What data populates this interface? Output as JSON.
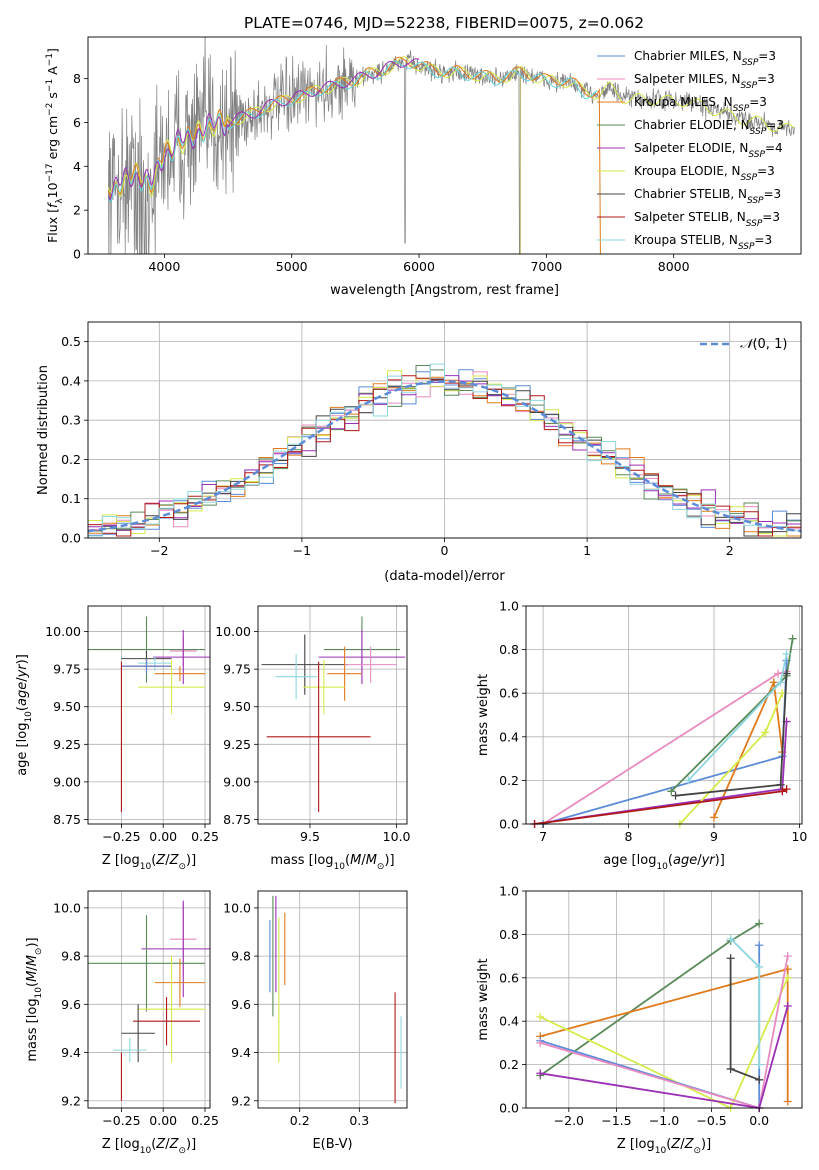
{
  "figure": {
    "title": "PLATE=0746, MJD=52238, FIBERID=0075, z=0.062"
  },
  "colors": {
    "Chabrier MILES": "#5b8bd9",
    "Salpeter MILES": "#e98ac0",
    "Kroupa MILES": "#e07b1c",
    "Chabrier ELODIE": "#5a8a5a",
    "Salpeter ELODIE": "#9b2fb5",
    "Kroupa ELODIE": "#d6ea4a",
    "Chabrier STELIB": "#444444",
    "Salpeter STELIB": "#b01818",
    "Kroupa STELIB": "#8fd6de",
    "data": "#808080",
    "normal_curve": "#5b8bd9",
    "cyan_model": "#63d8dc"
  },
  "chart_data": [
    {
      "id": "spectrum",
      "type": "line",
      "xlabel": "wavelength [Angstrom, rest frame]",
      "ylabel": "Flux [f_λ10^-17 erg cm^-2 s^-1 A^-1]",
      "xlim": [
        3400,
        9000
      ],
      "ylim": [
        0,
        9.9
      ],
      "xticks": [
        4000,
        5000,
        6000,
        7000,
        8000
      ],
      "yticks": [
        0,
        2,
        4,
        6,
        8
      ],
      "grid": false,
      "legend_position": "right",
      "legend": [
        "Chabrier MILES, N_SSP=3",
        "Salpeter MILES, N_SSP=3",
        "Kroupa MILES, N_SSP=3",
        "Chabrier ELODIE, N_SSP=3",
        "Salpeter ELODIE, N_SSP=4",
        "Kroupa ELODIE, N_SSP=3",
        "Chabrier STELIB, N_SSP=3",
        "Salpeter STELIB, N_SSP=3",
        "Kroupa STELIB, N_SSP=3"
      ],
      "continuum": {
        "x": [
          3600,
          3700,
          3800,
          3900,
          4000,
          4100,
          4200,
          4300,
          4400,
          4500,
          4600,
          4700,
          4800,
          4900,
          5000,
          5100,
          5200,
          5300,
          5400,
          5500,
          5600,
          5700,
          5800,
          5900,
          6000,
          6100,
          6200,
          6300,
          6400,
          6500,
          6600,
          6700,
          6800,
          6900,
          7000,
          7100,
          7200,
          7300,
          7400,
          7500,
          7600,
          7700,
          7800,
          7900,
          8000,
          8100,
          8200,
          8300,
          8400,
          8500,
          8600,
          8700,
          8800,
          8900
        ],
        "y": [
          3.0,
          3.4,
          3.6,
          3.2,
          4.5,
          5.1,
          5.2,
          5.7,
          5.9,
          6.0,
          6.2,
          6.4,
          6.7,
          6.9,
          7.1,
          7.2,
          7.5,
          7.6,
          7.8,
          7.9,
          8.2,
          8.3,
          8.6,
          8.8,
          8.6,
          8.4,
          8.3,
          8.3,
          8.2,
          8.1,
          8.0,
          8.1,
          8.3,
          8.1,
          7.9,
          7.9,
          7.8,
          7.4,
          7.3,
          7.6,
          7.1,
          7.1,
          7.0,
          7.1,
          6.9,
          7.0,
          6.8,
          6.6,
          6.4,
          6.2,
          6.1,
          6.0,
          5.8,
          5.7
        ]
      }
    },
    {
      "id": "residuals",
      "type": "line",
      "xlabel": "(data-model)/error",
      "ylabel": "Normed distribution",
      "xlim": [
        -2.5,
        2.5
      ],
      "ylim": [
        0,
        0.55
      ],
      "xticks": [
        -2,
        -1,
        0,
        1,
        2
      ],
      "yticks": [
        0.0,
        0.1,
        0.2,
        0.3,
        0.4,
        0.5
      ],
      "grid": true,
      "legend_position": "top-right",
      "legend": [
        "N(0,1)"
      ],
      "bins": {
        "start": -2.5,
        "width": 0.1,
        "count": 50
      }
    },
    {
      "id": "age_vs_Z",
      "type": "scatter",
      "xlabel": "Z [log10(Z/Z⊙)]",
      "ylabel": "age [log10(age/yr)]",
      "xlim": [
        -0.45,
        0.28
      ],
      "ylim": [
        8.72,
        10.17
      ],
      "xticks": [
        -0.25,
        0.0,
        0.25
      ],
      "yticks": [
        8.75,
        9.0,
        9.25,
        9.5,
        9.75,
        10.0
      ],
      "grid": true,
      "points": [
        {
          "series": "Chabrier ELODIE",
          "x": -0.1,
          "y": 9.88,
          "xerr": 0.35,
          "yerr": 0.22
        },
        {
          "series": "Salpeter MILES",
          "x": 0.12,
          "y": 9.87,
          "xerr": 0.08,
          "yerr": 0.1
        },
        {
          "series": "Salpeter ELODIE",
          "x": 0.12,
          "y": 9.83,
          "xerr": 0.18,
          "yerr": 0.18
        },
        {
          "series": "Chabrier STELIB",
          "x": -0.1,
          "y": 9.82,
          "xerr": 0.15,
          "yerr": 0.05
        },
        {
          "series": "Kroupa STELIB",
          "x": -0.05,
          "y": 9.79,
          "xerr": 0.1,
          "yerr": 0.05
        },
        {
          "series": "Salpeter STELIB",
          "x": -0.1,
          "y": 9.77,
          "xerr": 0.15,
          "yerr": 0.05
        },
        {
          "series": "Chabrier MILES",
          "x": -0.1,
          "y": 9.77,
          "xerr": 0.15,
          "yerr": 0.05
        },
        {
          "series": "Kroupa MILES",
          "x": 0.1,
          "y": 9.72,
          "xerr": 0.15,
          "yerr": 0.05
        },
        {
          "series": "Kroupa ELODIE",
          "x": 0.05,
          "y": 9.63,
          "xerr": 0.2,
          "yerr": 0.18
        },
        {
          "series": "Salpeter STELIB",
          "x": -0.25,
          "y": 9.3,
          "xerr": 0.0,
          "yerr": 0.5
        }
      ]
    },
    {
      "id": "age_vs_mass",
      "type": "scatter",
      "xlabel": "mass [log10(M/M⊙)]",
      "ylabel": "",
      "xlim": [
        9.2,
        10.06
      ],
      "ylim": [
        8.72,
        10.17
      ],
      "xticks": [
        9.5,
        10.0
      ],
      "yticks": [
        8.75,
        9.0,
        9.25,
        9.5,
        9.75,
        10.0
      ],
      "grid": true,
      "points": [
        {
          "series": "Chabrier ELODIE",
          "x": 9.8,
          "y": 9.88,
          "xerr": 0.22,
          "yerr": 0.22
        },
        {
          "series": "Salpeter ELODIE",
          "x": 9.8,
          "y": 9.83,
          "xerr": 0.25,
          "yerr": 0.18
        },
        {
          "series": "Chabrier STELIB",
          "x": 9.47,
          "y": 9.78,
          "xerr": 0.25,
          "yerr": 0.2
        },
        {
          "series": "Salpeter MILES",
          "x": 9.85,
          "y": 9.78,
          "xerr": 0.15,
          "yerr": 0.12
        },
        {
          "series": "Kroupa MILES",
          "x": 9.7,
          "y": 9.72,
          "xerr": 0.1,
          "yerr": 0.18
        },
        {
          "series": "Kroupa STELIB",
          "x": 9.42,
          "y": 9.7,
          "xerr": 0.12,
          "yerr": 0.15
        },
        {
          "series": "Kroupa ELODIE",
          "x": 9.58,
          "y": 9.63,
          "xerr": 0.12,
          "yerr": 0.18
        },
        {
          "series": "Salpeter STELIB",
          "x": 9.55,
          "y": 9.3,
          "xerr": 0.3,
          "yerr": 0.5
        }
      ]
    },
    {
      "id": "mass_weight_vs_age",
      "type": "line",
      "xlabel": "age [log10(age/yr)]",
      "ylabel": "mass weight",
      "xlim": [
        6.8,
        10.03
      ],
      "ylim": [
        0,
        1.0
      ],
      "xticks": [
        7,
        8,
        9,
        10
      ],
      "yticks": [
        0.0,
        0.2,
        0.4,
        0.6,
        0.8,
        1.0
      ],
      "grid": true,
      "series": [
        {
          "series": "Salpeter MILES",
          "x": [
            7.0,
            9.75,
            9.85
          ],
          "y": [
            0.0,
            0.69,
            0.7
          ]
        },
        {
          "series": "Chabrier MILES",
          "x": [
            7.0,
            9.8,
            9.85
          ],
          "y": [
            0.0,
            0.31,
            0.75
          ]
        },
        {
          "series": "Kroupa MILES",
          "x": [
            9.0,
            9.7,
            9.8
          ],
          "y": [
            0.03,
            0.65,
            0.33
          ]
        },
        {
          "series": "Chabrier ELODIE",
          "x": [
            8.5,
            9.85,
            9.92
          ],
          "y": [
            0.15,
            0.68,
            0.85
          ]
        },
        {
          "series": "Salpeter ELODIE",
          "x": [
            6.9,
            9.8,
            9.85
          ],
          "y": [
            0.0,
            0.16,
            0.47
          ]
        },
        {
          "series": "Kroupa ELODIE",
          "x": [
            8.6,
            9.6,
            9.8
          ],
          "y": [
            0.0,
            0.42,
            0.6
          ]
        },
        {
          "series": "Chabrier STELIB",
          "x": [
            8.55,
            9.78,
            9.85
          ],
          "y": [
            0.13,
            0.18,
            0.69
          ]
        },
        {
          "series": "Salpeter STELIB",
          "x": [
            6.9,
            9.8,
            9.85
          ],
          "y": [
            0.0,
            0.15,
            0.16
          ]
        },
        {
          "series": "Kroupa STELIB",
          "x": [
            8.7,
            9.78,
            9.85
          ],
          "y": [
            0.2,
            0.65,
            0.78
          ]
        }
      ]
    },
    {
      "id": "mass_vs_Z",
      "type": "scatter",
      "xlabel": "Z [log10(Z/Z⊙)]",
      "ylabel": "mass [log10(M/M⊙)]",
      "xlim": [
        -0.45,
        0.28
      ],
      "ylim": [
        9.17,
        10.07
      ],
      "xticks": [
        -0.25,
        0.0,
        0.25
      ],
      "yticks": [
        9.2,
        9.4,
        9.6,
        9.8,
        10.0
      ],
      "grid": true,
      "points": [
        {
          "series": "Salpeter MILES",
          "x": 0.12,
          "y": 9.87,
          "xerr": 0.08,
          "yerr": 0.15
        },
        {
          "series": "Salpeter ELODIE",
          "x": 0.12,
          "y": 9.83,
          "xerr": 0.25,
          "yerr": 0.2
        },
        {
          "series": "Chabrier ELODIE",
          "x": -0.1,
          "y": 9.77,
          "xerr": 0.35,
          "yerr": 0.2
        },
        {
          "series": "Kroupa MILES",
          "x": 0.1,
          "y": 9.69,
          "xerr": 0.15,
          "yerr": 0.1
        },
        {
          "series": "Kroupa ELODIE",
          "x": 0.05,
          "y": 9.58,
          "xerr": 0.2,
          "yerr": 0.22
        },
        {
          "series": "Salpeter STELIB",
          "x": 0.02,
          "y": 9.53,
          "xerr": 0.2,
          "yerr": 0.1
        },
        {
          "series": "Chabrier STELIB",
          "x": -0.15,
          "y": 9.48,
          "xerr": 0.1,
          "yerr": 0.12
        },
        {
          "series": "Kroupa STELIB",
          "x": -0.2,
          "y": 9.41,
          "xerr": 0.1,
          "yerr": 0.05
        },
        {
          "series": "Salpeter STELIB",
          "x": -0.25,
          "y": 9.3,
          "xerr": 0.0,
          "yerr": 0.1
        }
      ]
    },
    {
      "id": "mass_vs_EBV",
      "type": "scatter",
      "xlabel": "E(B-V)",
      "ylabel": "",
      "xlim": [
        0.13,
        0.38
      ],
      "ylim": [
        9.17,
        10.07
      ],
      "xticks": [
        0.2,
        0.3
      ],
      "yticks": [
        9.2,
        9.4,
        9.6,
        9.8,
        10.0
      ],
      "grid": true,
      "points": [
        {
          "series": "Chabrier MILES",
          "x": 0.15,
          "y": 9.8,
          "xerr": 0.0,
          "yerr": 0.15
        },
        {
          "series": "Chabrier ELODIE",
          "x": 0.155,
          "y": 9.8,
          "xerr": 0.0,
          "yerr": 0.25
        },
        {
          "series": "Salpeter ELODIE",
          "x": 0.16,
          "y": 9.85,
          "xerr": 0.0,
          "yerr": 0.2
        },
        {
          "series": "Kroupa ELODIE",
          "x": 0.165,
          "y": 9.66,
          "xerr": 0.0,
          "yerr": 0.3
        },
        {
          "series": "Kroupa MILES",
          "x": 0.175,
          "y": 9.83,
          "xerr": 0.0,
          "yerr": 0.15
        },
        {
          "series": "Salpeter STELIB",
          "x": 0.36,
          "y": 9.42,
          "xerr": 0.0,
          "yerr": 0.23
        },
        {
          "series": "Kroupa STELIB",
          "x": 0.37,
          "y": 9.4,
          "xerr": 0.0,
          "yerr": 0.15
        }
      ]
    },
    {
      "id": "mass_weight_vs_Z",
      "type": "line",
      "xlabel": "Z [log10(Z/Z⊙)]",
      "ylabel": "mass weight",
      "xlim": [
        -2.45,
        0.45
      ],
      "ylim": [
        0,
        1.0
      ],
      "xticks": [
        -2.0,
        -1.5,
        -1.0,
        -0.5,
        0.0
      ],
      "yticks": [
        0.0,
        0.2,
        0.4,
        0.6,
        0.8,
        1.0
      ],
      "grid": true,
      "series": [
        {
          "series": "Chabrier ELODIE",
          "x": [
            -2.3,
            -0.3,
            0.0
          ],
          "y": [
            0.15,
            0.77,
            0.85
          ]
        },
        {
          "series": "Kroupa MILES",
          "x": [
            -2.3,
            0.3,
            0.3
          ],
          "y": [
            0.33,
            0.64,
            0.03
          ]
        },
        {
          "series": "Kroupa ELODIE",
          "x": [
            -2.3,
            -0.3,
            0.3
          ],
          "y": [
            0.42,
            0.0,
            0.6
          ]
        },
        {
          "series": "Chabrier MILES",
          "x": [
            -2.3,
            0.0,
            0.0
          ],
          "y": [
            0.31,
            0.0,
            0.75
          ]
        },
        {
          "series": "Salpeter MILES",
          "x": [
            -2.3,
            0.0,
            0.3
          ],
          "y": [
            0.3,
            0.0,
            0.7
          ]
        },
        {
          "series": "Salpeter ELODIE",
          "x": [
            -2.3,
            0.0,
            0.3
          ],
          "y": [
            0.16,
            0.0,
            0.47
          ]
        },
        {
          "series": "Chabrier STELIB",
          "x": [
            -0.3,
            -0.3,
            0.0
          ],
          "y": [
            0.69,
            0.18,
            0.13
          ]
        },
        {
          "series": "Kroupa STELIB",
          "x": [
            -0.3,
            0.0,
            0.0
          ],
          "y": [
            0.78,
            0.65,
            0.2
          ]
        }
      ]
    }
  ]
}
